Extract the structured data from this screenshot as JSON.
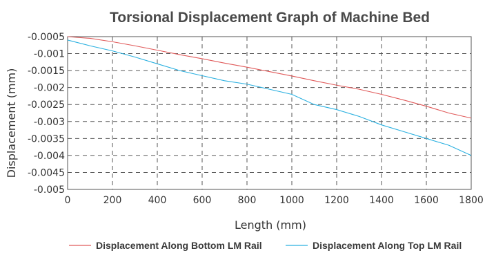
{
  "chart_data": {
    "type": "line",
    "title": "Torsional Displacement Graph of Machine Bed",
    "xlabel": "Length (mm)",
    "ylabel": "Displacement (mm)",
    "xlim": [
      0,
      1800
    ],
    "ylim": [
      -0.005,
      -0.0005
    ],
    "x_ticks": [
      0,
      200,
      400,
      600,
      800,
      1000,
      1200,
      1400,
      1600,
      1800
    ],
    "x_tick_labels": [
      "0",
      "200",
      "400",
      "600",
      "800",
      "1000",
      "1200",
      "1400",
      "1600",
      "1800"
    ],
    "y_ticks": [
      -0.0005,
      -0.001,
      -0.0015,
      -0.002,
      -0.0025,
      -0.003,
      -0.0035,
      -0.004,
      -0.0045,
      -0.005
    ],
    "y_tick_labels": [
      "-0.0005",
      "-0.001",
      "-0.0015",
      "-0.002",
      "-0.0025",
      "-0.003",
      "-0.0035",
      "-0.004",
      "-0.0045",
      "-0.005"
    ],
    "grid": true,
    "legend_position": "bottom",
    "series": [
      {
        "name": "Displacement Along Bottom LM Rail",
        "color": "#e05a5a",
        "x": [
          0,
          100,
          200,
          300,
          400,
          500,
          600,
          700,
          800,
          900,
          1000,
          1100,
          1200,
          1300,
          1400,
          1500,
          1600,
          1700,
          1800
        ],
        "y": [
          -0.0005,
          -0.00055,
          -0.00065,
          -0.00077,
          -0.0009,
          -0.00103,
          -0.00115,
          -0.00128,
          -0.0014,
          -0.00153,
          -0.00166,
          -0.0018,
          -0.00193,
          -0.00205,
          -0.0022,
          -0.00237,
          -0.00255,
          -0.00275,
          -0.0029
        ]
      },
      {
        "name": "Displacement Along Top LM Rail",
        "color": "#2ab0e0",
        "x": [
          0,
          100,
          200,
          300,
          400,
          500,
          600,
          700,
          800,
          900,
          1000,
          1100,
          1200,
          1300,
          1400,
          1500,
          1600,
          1700,
          1800
        ],
        "y": [
          -0.0006,
          -0.00077,
          -0.00092,
          -0.0011,
          -0.0013,
          -0.0015,
          -0.00165,
          -0.0018,
          -0.0019,
          -0.00205,
          -0.0022,
          -0.0025,
          -0.00265,
          -0.00285,
          -0.0031,
          -0.0033,
          -0.0035,
          -0.0037,
          -0.004
        ]
      }
    ]
  }
}
